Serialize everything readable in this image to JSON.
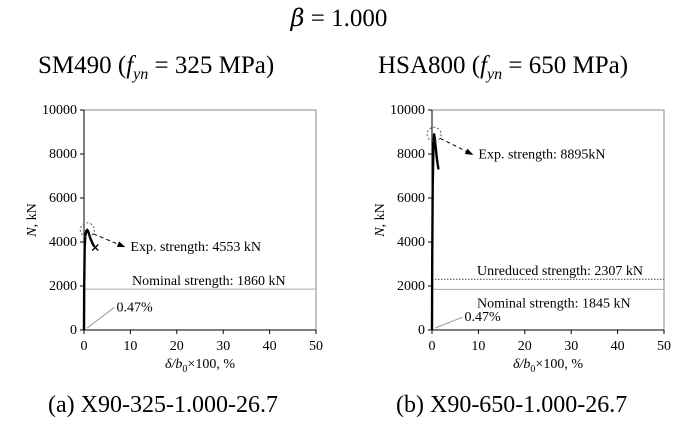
{
  "header": {
    "beta_symbol": "β",
    "beta_equals": " = ",
    "beta_value": "1.000"
  },
  "chart_data": [
    {
      "type": "line",
      "title_prefix": "SM490 (",
      "title_fy_symbol": "f",
      "title_fy_subscript": "yn",
      "title_suffix": " = 325 MPa)",
      "caption": "(a)  X90-325-1.000-26.7",
      "xlabel_delta": "δ/b",
      "xlabel_sub": "0",
      "xlabel_rest": "×100, %",
      "ylabel_N": "N",
      "ylabel_rest": ", kN",
      "xlim": [
        0,
        50
      ],
      "ylim": [
        0,
        10000
      ],
      "xticks": [
        0,
        10,
        20,
        30,
        40,
        50
      ],
      "yticks": [
        0,
        2000,
        4000,
        6000,
        8000,
        10000
      ],
      "curve": {
        "x": [
          0,
          0.05,
          0.15,
          0.3,
          0.5,
          0.7,
          0.9,
          1.1,
          1.4,
          1.8,
          2.2
        ],
        "y": [
          0,
          2000,
          3800,
          4300,
          4500,
          4553,
          4480,
          4350,
          4150,
          3950,
          3800
        ]
      },
      "failure_marker": {
        "x": 2.2,
        "y": 3750
      },
      "nominal_line": {
        "y": 1860,
        "label": "Nominal strength: 1860 kN"
      },
      "exp_annotation": {
        "x": 0.7,
        "y": 4553,
        "label": "Exp. strength: 4553 kN",
        "label_at": [
          10,
          3600
        ]
      },
      "ratio_annotation": {
        "x": 0.47,
        "y": 0,
        "label": "0.47%",
        "label_at": [
          7,
          850
        ]
      }
    },
    {
      "type": "line",
      "title_prefix": "HSA800 (",
      "title_fy_symbol": "f",
      "title_fy_subscript": "yn",
      "title_suffix": " = 650 MPa)",
      "caption": "(b)  X90-650-1.000-26.7",
      "xlabel_delta": "δ/b",
      "xlabel_sub": "0",
      "xlabel_rest": "×100, %",
      "ylabel_N": "N",
      "ylabel_rest": ", kN",
      "xlim": [
        0,
        50
      ],
      "ylim": [
        0,
        10000
      ],
      "xticks": [
        0,
        10,
        20,
        30,
        40,
        50
      ],
      "yticks": [
        0,
        2000,
        4000,
        6000,
        8000,
        10000
      ],
      "curve": {
        "x": [
          0,
          0.05,
          0.15,
          0.3,
          0.45,
          0.6,
          0.8,
          1.0,
          1.2,
          1.4
        ],
        "y": [
          0,
          3000,
          6500,
          8300,
          8895,
          8700,
          8300,
          7900,
          7550,
          7300
        ]
      },
      "failure_marker": null,
      "unreduced_line": {
        "y": 2307,
        "label": "Unreduced strength: 2307 kN"
      },
      "nominal_line": {
        "y": 1845,
        "label": "Nominal strength: 1845 kN"
      },
      "exp_annotation": {
        "x": 0.45,
        "y": 8895,
        "label": "Exp. strength: 8895kN",
        "label_at": [
          10,
          7800
        ]
      },
      "ratio_annotation": {
        "x": 0.47,
        "y": 0,
        "label": "0.47%",
        "label_at": [
          7,
          400
        ]
      }
    }
  ]
}
